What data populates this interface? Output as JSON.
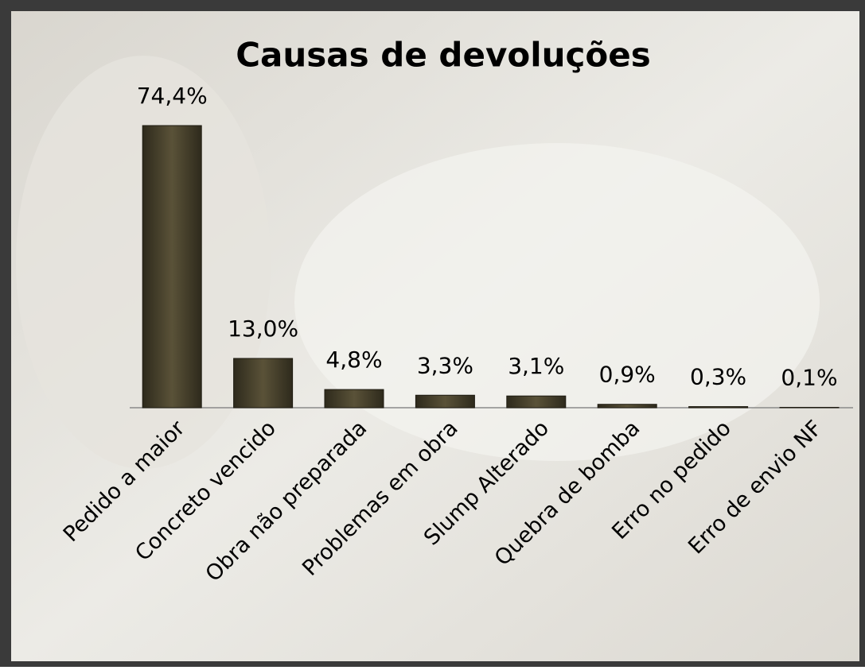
{
  "chart_data": {
    "type": "bar",
    "title": "Causas de devoluções",
    "categories": [
      "Pedido a maior",
      "Concreto vencido",
      "Obra não preparada",
      "Problemas em obra",
      "Slump Alterado",
      "Quebra de bomba",
      "Erro no pedido",
      "Erro de envio NF"
    ],
    "values": [
      74.4,
      13.0,
      4.8,
      3.3,
      3.1,
      0.9,
      0.3,
      0.1
    ],
    "value_labels": [
      "74,4%",
      "13,0%",
      "4,8%",
      "3,3%",
      "3,1%",
      "0,9%",
      "0,3%",
      "0,1%"
    ],
    "color": "#4a4430"
  }
}
